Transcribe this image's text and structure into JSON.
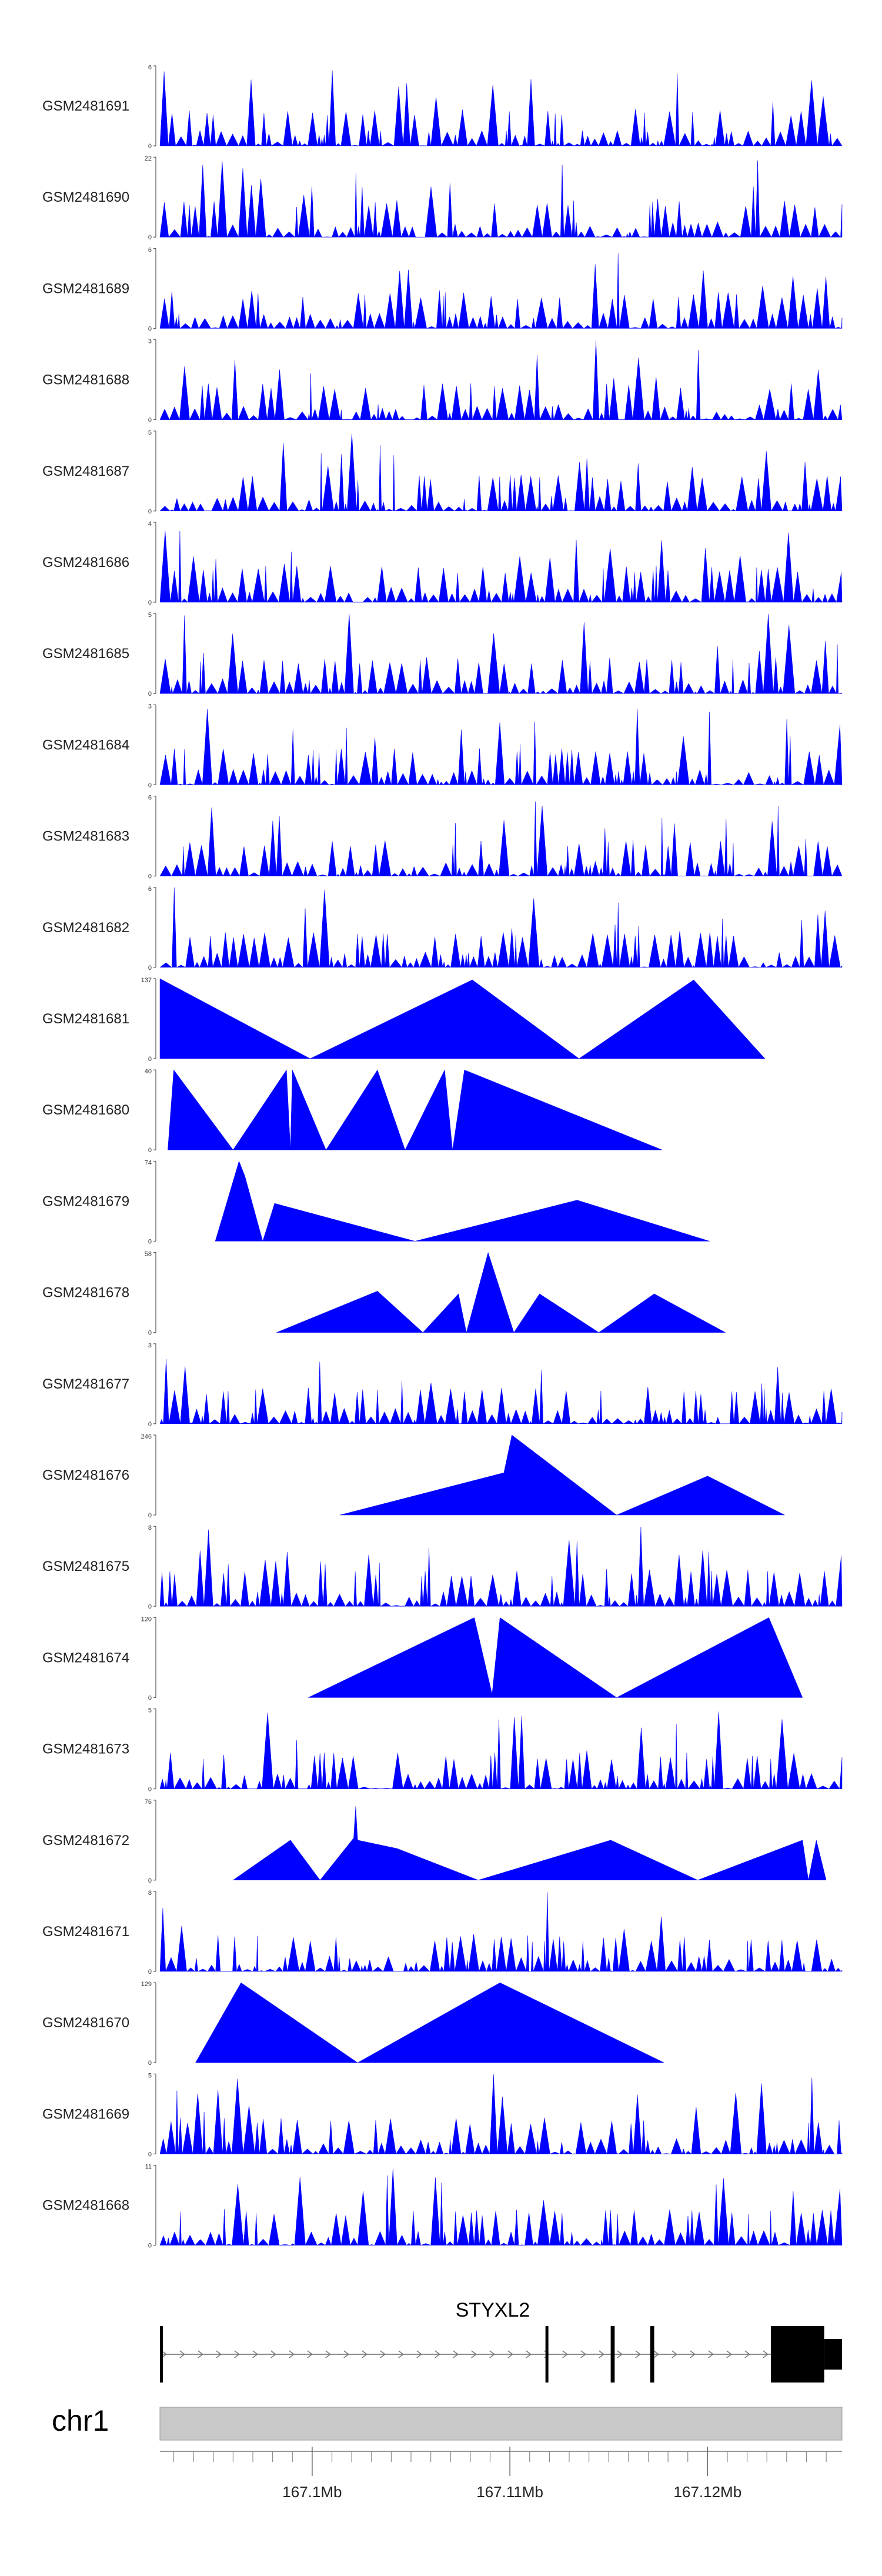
{
  "chart_data": {
    "type": "area",
    "description": "Genome browser coverage tracks",
    "color": "#0000ff",
    "x_range_mb": [
      167.0923,
      167.1268
    ],
    "tracks": [
      {
        "name": "GSM2481691",
        "ymax": 6,
        "ymin": 0
      },
      {
        "name": "GSM2481690",
        "ymax": 22,
        "ymin": 0
      },
      {
        "name": "GSM2481689",
        "ymax": 6,
        "ymin": 0
      },
      {
        "name": "GSM2481688",
        "ymax": 3,
        "ymin": 0
      },
      {
        "name": "GSM2481687",
        "ymax": 5,
        "ymin": 0
      },
      {
        "name": "GSM2481686",
        "ymax": 4,
        "ymin": 0
      },
      {
        "name": "GSM2481685",
        "ymax": 5,
        "ymin": 0
      },
      {
        "name": "GSM2481684",
        "ymax": 3,
        "ymin": 0
      },
      {
        "name": "GSM2481683",
        "ymax": 6,
        "ymin": 0
      },
      {
        "name": "GSM2481682",
        "ymax": 6,
        "ymin": 0
      },
      {
        "name": "GSM2481681",
        "ymax": 137,
        "ymin": 0,
        "points": [
          [
            167.0923,
            137
          ],
          [
            167.0999,
            0
          ],
          [
            167.1081,
            135
          ],
          [
            167.1135,
            0
          ],
          [
            167.1193,
            135
          ],
          [
            167.1229,
            0
          ]
        ]
      },
      {
        "name": "GSM2481680",
        "ymax": 40,
        "ymin": 0,
        "points": [
          [
            167.0927,
            0
          ],
          [
            167.093,
            40
          ],
          [
            167.096,
            0
          ],
          [
            167.0987,
            40
          ],
          [
            167.0989,
            0
          ],
          [
            167.099,
            40
          ],
          [
            167.1007,
            0
          ],
          [
            167.1033,
            40
          ],
          [
            167.1047,
            0
          ],
          [
            167.1067,
            40
          ],
          [
            167.1071,
            0
          ],
          [
            167.1077,
            40
          ],
          [
            167.1177,
            0
          ]
        ]
      },
      {
        "name": "GSM2481679",
        "ymax": 74,
        "ymin": 0,
        "points": [
          [
            167.0951,
            0
          ],
          [
            167.0963,
            74
          ],
          [
            167.0966,
            60
          ],
          [
            167.0975,
            0
          ],
          [
            167.0981,
            35
          ],
          [
            167.1052,
            0
          ],
          [
            167.1134,
            38
          ],
          [
            167.1201,
            0
          ]
        ]
      },
      {
        "name": "GSM2481678",
        "ymax": 58,
        "ymin": 0,
        "points": [
          [
            167.0982,
            0
          ],
          [
            167.1033,
            30
          ],
          [
            167.1056,
            0
          ],
          [
            167.1074,
            28
          ],
          [
            167.1078,
            0
          ],
          [
            167.1089,
            58
          ],
          [
            167.1102,
            0
          ],
          [
            167.1115,
            28
          ],
          [
            167.1145,
            0
          ],
          [
            167.1173,
            28
          ],
          [
            167.1209,
            0
          ]
        ]
      },
      {
        "name": "GSM2481677",
        "ymax": 3,
        "ymin": 0
      },
      {
        "name": "GSM2481676",
        "ymax": 246,
        "ymin": 0,
        "points": [
          [
            167.1014,
            0
          ],
          [
            167.1097,
            130
          ],
          [
            167.1101,
            246
          ],
          [
            167.1154,
            0
          ],
          [
            167.12,
            120
          ],
          [
            167.1239,
            0
          ]
        ]
      },
      {
        "name": "GSM2481675",
        "ymax": 8,
        "ymin": 0
      },
      {
        "name": "GSM2481674",
        "ymax": 120,
        "ymin": 0,
        "points": [
          [
            167.0998,
            0
          ],
          [
            167.1082,
            120
          ],
          [
            167.1091,
            5
          ],
          [
            167.1095,
            120
          ],
          [
            167.1154,
            0
          ],
          [
            167.1231,
            120
          ],
          [
            167.1248,
            0
          ]
        ]
      },
      {
        "name": "GSM2481673",
        "ymax": 5,
        "ymin": 0
      },
      {
        "name": "GSM2481672",
        "ymax": 76,
        "ymin": 0,
        "points": [
          [
            167.096,
            0
          ],
          [
            167.0989,
            38
          ],
          [
            167.1004,
            0
          ],
          [
            167.1021,
            40
          ],
          [
            167.1022,
            70
          ],
          [
            167.1023,
            38
          ],
          [
            167.1043,
            30
          ],
          [
            167.1084,
            0
          ],
          [
            167.1151,
            38
          ],
          [
            167.1195,
            0
          ],
          [
            167.1248,
            38
          ],
          [
            167.1251,
            0
          ],
          [
            167.1255,
            38
          ],
          [
            167.126,
            0
          ]
        ]
      },
      {
        "name": "GSM2481671",
        "ymax": 8,
        "ymin": 0
      },
      {
        "name": "GSM2481670",
        "ymax": 129,
        "ymin": 0,
        "points": [
          [
            167.0941,
            0
          ],
          [
            167.0964,
            129
          ],
          [
            167.1023,
            0
          ],
          [
            167.1095,
            129
          ],
          [
            167.1178,
            0
          ]
        ]
      },
      {
        "name": "GSM2481669",
        "ymax": 5,
        "ymin": 0
      },
      {
        "name": "GSM2481668",
        "ymax": 11,
        "ymin": 0
      }
    ],
    "gene": {
      "name": "STYXL2",
      "strand": "+",
      "exons_mb": [
        [
          167.0923,
          167.0924
        ],
        [
          167.1118,
          167.1119
        ],
        [
          167.1151,
          167.1153
        ],
        [
          167.1171,
          167.1173
        ],
        [
          167.1232,
          167.1259
        ],
        [
          167.1259,
          167.1268
        ]
      ]
    },
    "axis": {
      "chrom": "chr1",
      "tick_labels": [
        "167.1Mb",
        "167.11Mb",
        "167.12Mb"
      ],
      "tick_values_mb": [
        167.1,
        167.11,
        167.12
      ],
      "minor_ticks_mb": [
        167.093,
        167.094,
        167.095,
        167.096,
        167.097,
        167.098,
        167.099,
        167.101,
        167.102,
        167.103,
        167.104,
        167.105,
        167.106,
        167.107,
        167.108,
        167.109,
        167.111,
        167.112,
        167.113,
        167.114,
        167.115,
        167.116,
        167.117,
        167.118,
        167.119,
        167.121,
        167.122,
        167.123,
        167.124,
        167.125,
        167.126
      ]
    }
  }
}
